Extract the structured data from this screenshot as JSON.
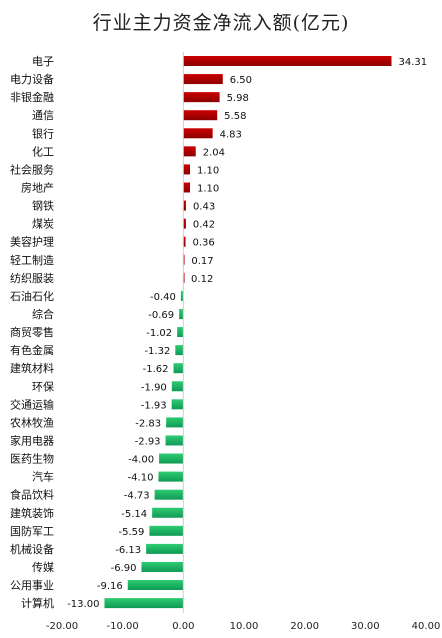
{
  "chart_data": {
    "type": "bar",
    "orientation": "horizontal",
    "title": "行业主力资金净流入额(亿元)",
    "categories": [
      "电子",
      "电力设备",
      "非银金融",
      "通信",
      "银行",
      "化工",
      "社会服务",
      "房地产",
      "钢铁",
      "煤炭",
      "美容护理",
      "轻工制造",
      "纺织服装",
      "石油石化",
      "综合",
      "商贸零售",
      "有色金属",
      "建筑材料",
      "环保",
      "交通运输",
      "农林牧渔",
      "家用电器",
      "医药生物",
      "汽车",
      "食品饮料",
      "建筑装饰",
      "国防军工",
      "机械设备",
      "传媒",
      "公用事业",
      "计算机"
    ],
    "values": [
      34.31,
      6.5,
      5.98,
      5.58,
      4.83,
      2.04,
      1.1,
      1.1,
      0.43,
      0.42,
      0.36,
      0.17,
      0.12,
      -0.4,
      -0.69,
      -1.02,
      -1.32,
      -1.62,
      -1.9,
      -1.93,
      -2.83,
      -2.93,
      -4.0,
      -4.1,
      -4.73,
      -5.14,
      -5.59,
      -6.13,
      -6.9,
      -9.16,
      -13.0
    ],
    "value_labels": [
      "34.31",
      "6.50",
      "5.98",
      "5.58",
      "4.83",
      "2.04",
      "1.10",
      "1.10",
      "0.43",
      "0.42",
      "0.36",
      "0.17",
      "0.12",
      "-0.40",
      "-0.69",
      "-1.02",
      "-1.32",
      "-1.62",
      "-1.90",
      "-1.93",
      "-2.83",
      "-2.93",
      "-4.00",
      "-4.10",
      "-4.73",
      "-5.14",
      "-5.59",
      "-6.13",
      "-6.90",
      "-9.16",
      "-13.00"
    ],
    "xlim": [
      -20,
      40
    ],
    "x_ticks": [
      -20,
      -10,
      0,
      10,
      20,
      30,
      40
    ],
    "x_tick_labels": [
      "-20.00",
      "-10.00",
      "0.00",
      "10.00",
      "20.00",
      "30.00",
      "40.00"
    ],
    "grid": false,
    "colors": {
      "positive": "#cc0000",
      "positive_dark": "#8b0000",
      "negative": "#2ecc71",
      "negative_dark": "#0f9a55"
    }
  }
}
